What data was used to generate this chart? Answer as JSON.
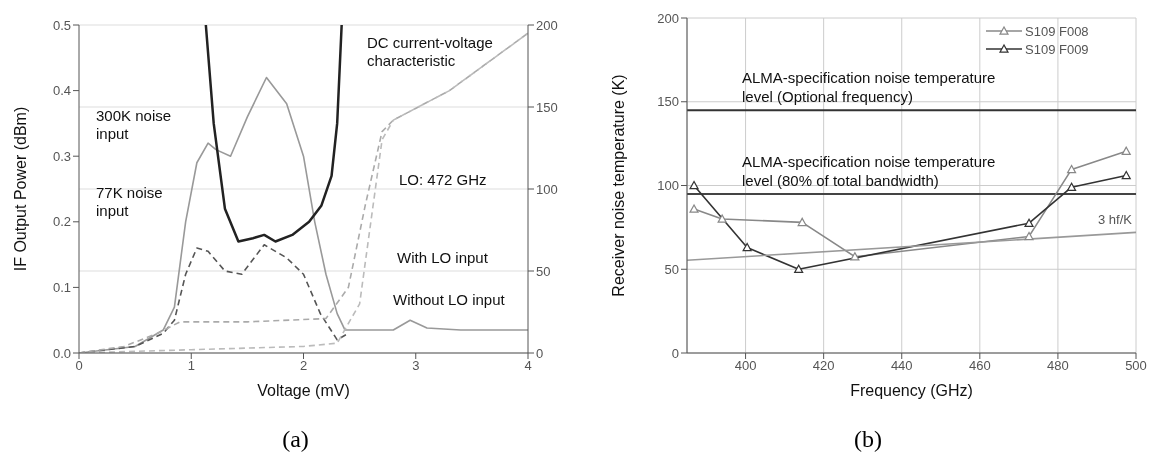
{
  "chart_data": [
    {
      "type": "line",
      "xlabel": "Voltage (mV)",
      "ylabel": "IF Output Power (dBm)",
      "xlim": [
        0,
        4
      ],
      "xticks": [
        0,
        1,
        2,
        3,
        4
      ],
      "ylim": [
        0,
        0.5
      ],
      "yticks": [
        {
          "value": 0,
          "label": "0.0"
        },
        {
          "value": 0.1,
          "label": "0.1"
        },
        {
          "value": 0.2,
          "label": "0.2"
        },
        {
          "value": 0.3,
          "label": "0.3"
        },
        {
          "value": 0.4,
          "label": "0.4"
        },
        {
          "value": 0.5,
          "label": "0.5"
        }
      ],
      "y2lim": [
        0,
        200
      ],
      "y2ticks": [
        0,
        50,
        100,
        150,
        200
      ],
      "grid": "y2",
      "marker": "none",
      "series": [
        {
          "color": "#999999",
          "line_style": "solid",
          "x": [
            0,
            0.5,
            0.75,
            0.85,
            0.95,
            1.05,
            1.15,
            1.22,
            1.35,
            1.5,
            1.67,
            1.85,
            2.0,
            2.1,
            2.2,
            2.3,
            2.37,
            2.8,
            2.95,
            3.1,
            3.4,
            4
          ],
          "values": [
            0,
            0.01,
            0.035,
            0.07,
            0.2,
            0.29,
            0.32,
            0.31,
            0.3,
            0.36,
            0.42,
            0.38,
            0.3,
            0.2,
            0.12,
            0.06,
            0.035,
            0.035,
            0.05,
            0.038,
            0.035,
            0.035
          ]
        },
        {
          "color": "#555555",
          "line_style": "dashed",
          "x": [
            0,
            0.5,
            0.75,
            0.85,
            0.95,
            1.05,
            1.15,
            1.3,
            1.45,
            1.65,
            1.85,
            2.0,
            2.15,
            2.3,
            2.4
          ],
          "values": [
            0,
            0.01,
            0.03,
            0.05,
            0.12,
            0.16,
            0.155,
            0.125,
            0.12,
            0.165,
            0.145,
            0.12,
            0.06,
            0.02,
            0.03
          ]
        },
        {
          "color": "#222222",
          "line_style": "solid",
          "x": [
            1.13,
            1.2,
            1.3,
            1.42,
            1.55,
            1.65,
            1.75,
            1.9,
            2.05,
            2.16,
            2.25,
            2.3,
            2.34
          ],
          "values": [
            0.5,
            0.35,
            0.22,
            0.17,
            0.175,
            0.18,
            0.17,
            0.18,
            0.2,
            0.225,
            0.27,
            0.35,
            0.5
          ]
        },
        {
          "color": "#aaaaaa",
          "line_style": "dashed",
          "axis": "y2",
          "x": [
            0,
            0.4,
            0.7,
            0.9,
            1.5,
            2.2,
            2.4,
            2.55,
            2.7,
            2.8,
            3.3,
            4
          ],
          "values": [
            0,
            4,
            12,
            19,
            19,
            21,
            40,
            90,
            135,
            142,
            160,
            195
          ]
        },
        {
          "color": "#bbbbbb",
          "line_style": "dashed",
          "axis": "y2",
          "x": [
            0,
            1.0,
            2.0,
            2.3,
            2.5,
            2.6,
            2.7,
            2.8,
            3.3,
            4
          ],
          "values": [
            0,
            2,
            4,
            6,
            30,
            80,
            130,
            142,
            160,
            195
          ]
        }
      ],
      "annotations": [
        "300K noise input",
        "77K noise input",
        "With LO input",
        "Without LO input",
        "DC current-voltage characteristic",
        "LO: 472 GHz",
        "(a)"
      ]
    },
    {
      "type": "line",
      "xlabel": "Frequency (GHz)",
      "ylabel": "Receiver noise temperature (K)",
      "xlim": [
        385,
        500
      ],
      "xticks": [
        400,
        420,
        440,
        460,
        480,
        500
      ],
      "ylim": [
        0,
        200
      ],
      "yticks": [
        0,
        50,
        100,
        150,
        200
      ],
      "grid": true,
      "legend": "top right",
      "marker": "triangle",
      "series": [
        {
          "name": "S109 F008",
          "color": "#888888",
          "x": [
            386.8,
            394,
            414.5,
            428,
            472.6,
            483.5,
            497.5
          ],
          "values": [
            86,
            80,
            78,
            57.5,
            69.6,
            109.6,
            120.5
          ]
        },
        {
          "name": "S109 F009",
          "color": "#333333",
          "x": [
            386.8,
            400.4,
            413.6,
            472.6,
            483.5,
            497.5
          ],
          "values": [
            100,
            63,
            50,
            77.5,
            99,
            106
          ]
        },
        {
          "name": "3 hf/K",
          "color": "#999999",
          "marker": "none",
          "x": [
            385,
            500
          ],
          "values": [
            55.4,
            72
          ]
        }
      ],
      "ref_lines": [
        {
          "axis": "y",
          "value": 145,
          "label": "ALMA-specification noise temperature level (Optional frequency)",
          "color": "#333333"
        },
        {
          "axis": "y",
          "value": 95,
          "label": "ALMA-specification noise temperature level (80% of total bandwidth)",
          "color": "#444444"
        }
      ],
      "annotations": [
        "(b)"
      ]
    }
  ]
}
